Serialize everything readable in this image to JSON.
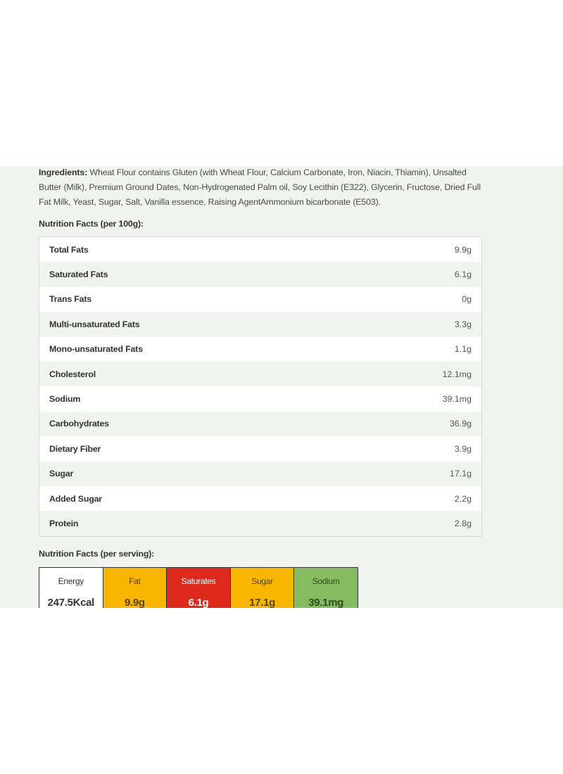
{
  "ingredients": {
    "label": "Ingredients:",
    "text": "Wheat Flour contains Gluten (with Wheat Flour, Calcium Carbonate, Iron, Niacin, Thiamin), Unsalted Butter (Milk), Premium Ground Dates, Non-Hydrogenated Palm oil, Soy Lecithin (E322), Glycerin, Fructose, Dried Full Fat Milk, Yeast, Sugar, Salt, Vanilla essence, Raising AgentAmmonium bicarbonate (E503)."
  },
  "nutrition_100g": {
    "title": "Nutrition Facts (per 100g):",
    "rows": [
      {
        "name": "Total Fats",
        "value": "9.9g"
      },
      {
        "name": "Saturated Fats",
        "value": "6.1g"
      },
      {
        "name": "Trans Fats",
        "value": "0g"
      },
      {
        "name": "Multi-unsaturated Fats",
        "value": "3.3g"
      },
      {
        "name": "Mono-unsaturated Fats",
        "value": "1.1g"
      },
      {
        "name": "Cholesterol",
        "value": "12.1mg"
      },
      {
        "name": "Sodium",
        "value": "39.1mg"
      },
      {
        "name": "Carbohydrates",
        "value": "36.9g"
      },
      {
        "name": "Dietary Fiber",
        "value": "3.9g"
      },
      {
        "name": "Sugar",
        "value": "17.1g"
      },
      {
        "name": "Added Sugar",
        "value": "2.2g"
      },
      {
        "name": "Protein",
        "value": "2.8g"
      }
    ]
  },
  "nutrition_serving": {
    "title": "Nutrition Facts (per serving):",
    "cells": [
      {
        "label": "Energy",
        "value": "247.5Kcal",
        "color": "#ffffff"
      },
      {
        "label": "Fat",
        "value": "9.9g",
        "color": "#f8b600"
      },
      {
        "label": "Saturates",
        "value": "6.1g",
        "color": "#de2a1c"
      },
      {
        "label": "Sugar",
        "value": "17.1g",
        "color": "#f8b600"
      },
      {
        "label": "Sodium",
        "value": "39.1mg",
        "color": "#86bb62"
      }
    ]
  }
}
